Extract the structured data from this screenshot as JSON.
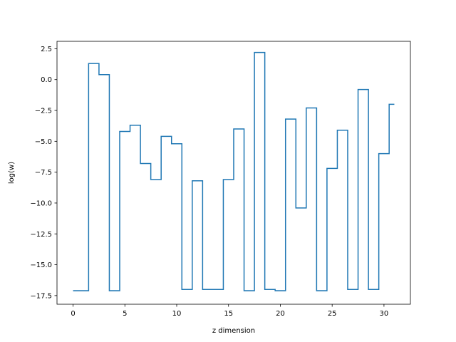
{
  "chart_data": {
    "type": "line",
    "step": "mid",
    "title": "",
    "xlabel": "z dimension",
    "ylabel": "log(w)",
    "xlim": [
      -1.55,
      32.55
    ],
    "ylim": [
      -18.2,
      3.1
    ],
    "x_ticks": [
      0,
      5,
      10,
      15,
      20,
      25,
      30
    ],
    "x_tick_labels": [
      "0",
      "5",
      "10",
      "15",
      "20",
      "25",
      "30"
    ],
    "y_ticks": [
      2.5,
      0.0,
      -2.5,
      -5.0,
      -7.5,
      -10.0,
      -12.5,
      -15.0,
      -17.5
    ],
    "y_tick_labels": [
      "2.5",
      "0.0",
      "−2.5",
      "−5.0",
      "−7.5",
      "−10.0",
      "−12.5",
      "−15.0",
      "−17.5"
    ],
    "grid": false,
    "line_color": "#1f77b4",
    "series": [
      {
        "x": [
          0,
          1,
          2,
          3,
          4,
          5,
          6,
          7,
          8,
          9,
          10,
          11,
          12,
          13,
          14,
          15,
          16,
          17,
          18,
          19,
          20,
          21,
          22,
          23,
          24,
          25,
          26,
          27,
          28,
          29,
          30,
          31
        ],
        "values": [
          -17.1,
          -17.1,
          1.3,
          0.4,
          -17.1,
          -4.2,
          -3.7,
          -6.8,
          -8.1,
          -4.6,
          -5.2,
          -17.0,
          -8.2,
          -17.0,
          -17.0,
          -8.1,
          -4.0,
          -17.1,
          2.2,
          -17.0,
          -17.1,
          -3.2,
          -10.4,
          -2.3,
          -17.1,
          -7.2,
          -4.1,
          -17.0,
          -0.8,
          -17.0,
          -6.0,
          -2.0
        ]
      }
    ]
  }
}
